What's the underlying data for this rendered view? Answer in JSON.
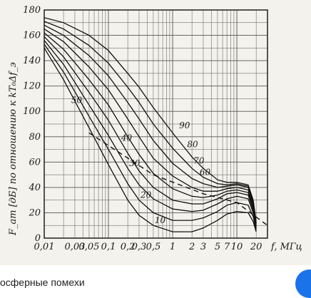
{
  "chart_data": {
    "type": "line",
    "xscale": "log",
    "xlim": [
      0.01,
      30
    ],
    "ylim": [
      0,
      180
    ],
    "grid": true,
    "ylabel": "F_ат [дБ] по отношению к kT₀Δf_э",
    "xlabel": "f, МГц",
    "x_tick_labels": [
      "0,01",
      "0,03",
      "0,05",
      "0,1",
      "0,2",
      "0,3",
      "0,5",
      "1",
      "2",
      "3",
      "5",
      "7",
      "10",
      "20"
    ],
    "x_tick_values": [
      0.01,
      0.03,
      0.05,
      0.1,
      0.2,
      0.3,
      0.5,
      1,
      2,
      3,
      5,
      7,
      10,
      20
    ],
    "y_ticks": [
      0,
      20,
      40,
      60,
      80,
      100,
      120,
      140,
      160,
      180
    ],
    "series": [
      {
        "name": "10",
        "points": [
          [
            0.01,
            150
          ],
          [
            0.02,
            125
          ],
          [
            0.05,
            87
          ],
          [
            0.1,
            58
          ],
          [
            0.2,
            30
          ],
          [
            0.3,
            18
          ],
          [
            0.5,
            10
          ],
          [
            1,
            5
          ],
          [
            2,
            5
          ],
          [
            3,
            8
          ],
          [
            5,
            14
          ],
          [
            7,
            19
          ],
          [
            10,
            21
          ],
          [
            15,
            20
          ],
          [
            18,
            13
          ],
          [
            20,
            5
          ]
        ]
      },
      {
        "name": "20",
        "points": [
          [
            0.01,
            153
          ],
          [
            0.02,
            131
          ],
          [
            0.05,
            96
          ],
          [
            0.1,
            70
          ],
          [
            0.2,
            43
          ],
          [
            0.3,
            30
          ],
          [
            0.5,
            20
          ],
          [
            1,
            14
          ],
          [
            2,
            14
          ],
          [
            3,
            16
          ],
          [
            5,
            21
          ],
          [
            7,
            26
          ],
          [
            10,
            28
          ],
          [
            15,
            26
          ],
          [
            18,
            17
          ],
          [
            20,
            6
          ]
        ]
      },
      {
        "name": "30",
        "points": [
          [
            0.01,
            156
          ],
          [
            0.02,
            137
          ],
          [
            0.05,
            105
          ],
          [
            0.1,
            81
          ],
          [
            0.2,
            55
          ],
          [
            0.3,
            42
          ],
          [
            0.5,
            31
          ],
          [
            1,
            23
          ],
          [
            2,
            21
          ],
          [
            3,
            22
          ],
          [
            5,
            27
          ],
          [
            7,
            31
          ],
          [
            10,
            33
          ],
          [
            15,
            31
          ],
          [
            18,
            20
          ],
          [
            20,
            7
          ]
        ]
      },
      {
        "name": "40",
        "points": [
          [
            0.01,
            159
          ],
          [
            0.02,
            143
          ],
          [
            0.05,
            115
          ],
          [
            0.1,
            93
          ],
          [
            0.2,
            67
          ],
          [
            0.3,
            53
          ],
          [
            0.5,
            40
          ],
          [
            1,
            30
          ],
          [
            2,
            27
          ],
          [
            3,
            27
          ],
          [
            5,
            31
          ],
          [
            7,
            35
          ],
          [
            10,
            36
          ],
          [
            15,
            34
          ],
          [
            18,
            22
          ],
          [
            20,
            8
          ]
        ]
      },
      {
        "name": "50",
        "points": [
          [
            0.01,
            162
          ],
          [
            0.02,
            149
          ],
          [
            0.05,
            125
          ],
          [
            0.1,
            105
          ],
          [
            0.2,
            80
          ],
          [
            0.3,
            66
          ],
          [
            0.5,
            51
          ],
          [
            1,
            39
          ],
          [
            2,
            33
          ],
          [
            3,
            32
          ],
          [
            5,
            34
          ],
          [
            7,
            37
          ],
          [
            10,
            38
          ],
          [
            15,
            36
          ],
          [
            18,
            24
          ],
          [
            20,
            9
          ]
        ]
      },
      {
        "name": "60",
        "points": [
          [
            0.01,
            165
          ],
          [
            0.02,
            155
          ],
          [
            0.05,
            135
          ],
          [
            0.1,
            117
          ],
          [
            0.2,
            94
          ],
          [
            0.3,
            80
          ],
          [
            0.5,
            63
          ],
          [
            1,
            49
          ],
          [
            2,
            40
          ],
          [
            3,
            37
          ],
          [
            5,
            37
          ],
          [
            7,
            39
          ],
          [
            10,
            40
          ],
          [
            15,
            38
          ],
          [
            18,
            26
          ],
          [
            20,
            10
          ]
        ]
      },
      {
        "name": "70",
        "points": [
          [
            0.01,
            168
          ],
          [
            0.02,
            160
          ],
          [
            0.05,
            144
          ],
          [
            0.1,
            128
          ],
          [
            0.2,
            107
          ],
          [
            0.3,
            94
          ],
          [
            0.5,
            77
          ],
          [
            1,
            59
          ],
          [
            2,
            47
          ],
          [
            3,
            43
          ],
          [
            5,
            40
          ],
          [
            7,
            41
          ],
          [
            10,
            42
          ],
          [
            15,
            40
          ],
          [
            18,
            28
          ],
          [
            20,
            11
          ]
        ]
      },
      {
        "name": "80",
        "points": [
          [
            0.01,
            171
          ],
          [
            0.02,
            165
          ],
          [
            0.05,
            152
          ],
          [
            0.1,
            138
          ],
          [
            0.2,
            119
          ],
          [
            0.3,
            107
          ],
          [
            0.5,
            90
          ],
          [
            1,
            71
          ],
          [
            2,
            55
          ],
          [
            3,
            48
          ],
          [
            5,
            43
          ],
          [
            7,
            42
          ],
          [
            10,
            43
          ],
          [
            15,
            41
          ],
          [
            18,
            29
          ],
          [
            20,
            12
          ]
        ]
      },
      {
        "name": "90",
        "points": [
          [
            0.01,
            174
          ],
          [
            0.02,
            170
          ],
          [
            0.05,
            160
          ],
          [
            0.1,
            148
          ],
          [
            0.2,
            130
          ],
          [
            0.3,
            119
          ],
          [
            0.5,
            103
          ],
          [
            1,
            83
          ],
          [
            2,
            64
          ],
          [
            3,
            55
          ],
          [
            5,
            46
          ],
          [
            7,
            44
          ],
          [
            10,
            44
          ],
          [
            15,
            42
          ],
          [
            18,
            30
          ],
          [
            20,
            13
          ]
        ]
      }
    ],
    "reference_line": {
      "style": "dashed",
      "points": [
        [
          0.05,
          83
        ],
        [
          0.5,
          50
        ],
        [
          3,
          35
        ],
        [
          10,
          28
        ],
        [
          30,
          10
        ]
      ]
    }
  },
  "caption": {
    "text": "осферные помехи"
  }
}
